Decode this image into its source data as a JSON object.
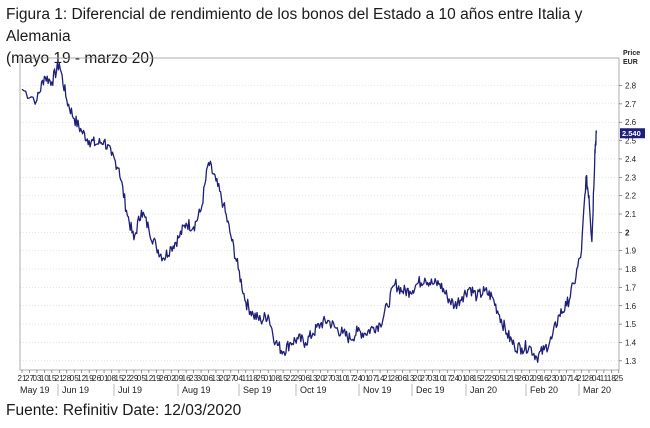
{
  "title_line1": "Figura 1: Diferencial de rendimiento de los bonos del Estado a 10 años entre Italia y Alemania",
  "title_line2": "(mayo 19 - marzo 20)",
  "source": "Fuente: Refinitiv Date: 12/03/2020",
  "colors": {
    "line": "#1f1f7a",
    "grid": "#c8c8c8",
    "last_badge": "#1f1f7a"
  },
  "chart_data": {
    "type": "line",
    "x_labels": [
      "21",
      "27",
      "03",
      "10",
      "15",
      "21",
      "28",
      "05",
      "12",
      "19",
      "26",
      "01",
      "08",
      "15",
      "22",
      "29",
      "05",
      "12",
      "19",
      "26",
      "02",
      "09",
      "16",
      "23",
      "30",
      "06",
      "13",
      "20",
      "27",
      "04",
      "11",
      "18",
      "25",
      "01",
      "08",
      "15",
      "22",
      "29",
      "06",
      "13",
      "20",
      "27",
      "03",
      "10",
      "17",
      "24",
      "01",
      "07",
      "14",
      "21",
      "28",
      "06",
      "13",
      "20",
      "27",
      "03",
      "10",
      "17",
      "24",
      "01",
      "08",
      "15",
      "22",
      "29",
      "05",
      "12",
      "19",
      "26",
      "02",
      "09",
      "16",
      "23",
      "01",
      "07",
      "14",
      "21",
      "28",
      "04",
      "11",
      "18",
      "25"
    ],
    "month_labels": [
      "May 19",
      "Jun 19",
      "Jul 19",
      "Aug 19",
      "Sep 19",
      "Oct 19",
      "Nov 19",
      "Dec 19",
      "Jan 20",
      "Feb 20",
      "Mar 20"
    ],
    "y_unit_lines": [
      "Price",
      "EUR"
    ],
    "ylim": [
      1.25,
      2.95
    ],
    "y_ticks": [
      "1.3",
      "1.4",
      "1.5",
      "1.6",
      "1.7",
      "1.8",
      "1.9",
      "2",
      "2.1",
      "2.2",
      "2.3",
      "2.4",
      "2.5",
      "2.6",
      "2.7",
      "2.8"
    ],
    "last_value_label": "2.540",
    "series": [
      {
        "values": [
          [
            0,
            2.78
          ],
          [
            2,
            2.72
          ],
          [
            3,
            2.85
          ],
          [
            4,
            2.82
          ],
          [
            5,
            2.92
          ],
          [
            6,
            2.72
          ],
          [
            7,
            2.62
          ],
          [
            8,
            2.55
          ],
          [
            9,
            2.5
          ],
          [
            10,
            2.48
          ],
          [
            11,
            2.5
          ],
          [
            12,
            2.42
          ],
          [
            13,
            2.35
          ],
          [
            14,
            2.12
          ],
          [
            15,
            1.96
          ],
          [
            16,
            2.12
          ],
          [
            17,
            2.02
          ],
          [
            18,
            1.92
          ],
          [
            19,
            1.86
          ],
          [
            20,
            1.92
          ],
          [
            21,
            1.97
          ],
          [
            22,
            2.05
          ],
          [
            23,
            2.03
          ],
          [
            24,
            2.12
          ],
          [
            25,
            2.38
          ],
          [
            26,
            2.28
          ],
          [
            27,
            2.15
          ],
          [
            28,
            1.98
          ],
          [
            29,
            1.8
          ],
          [
            30,
            1.62
          ],
          [
            31,
            1.55
          ],
          [
            32,
            1.52
          ],
          [
            33,
            1.55
          ],
          [
            34,
            1.4
          ],
          [
            35,
            1.35
          ],
          [
            36,
            1.4
          ],
          [
            37,
            1.42
          ],
          [
            38,
            1.4
          ],
          [
            39,
            1.45
          ],
          [
            40,
            1.5
          ],
          [
            41,
            1.52
          ],
          [
            42,
            1.48
          ],
          [
            43,
            1.45
          ],
          [
            44,
            1.42
          ],
          [
            45,
            1.46
          ],
          [
            46,
            1.45
          ],
          [
            47,
            1.48
          ],
          [
            48,
            1.5
          ],
          [
            49,
            1.6
          ],
          [
            50,
            1.72
          ],
          [
            51,
            1.68
          ],
          [
            52,
            1.68
          ],
          [
            53,
            1.72
          ],
          [
            54,
            1.75
          ],
          [
            55,
            1.72
          ],
          [
            56,
            1.72
          ],
          [
            57,
            1.65
          ],
          [
            58,
            1.6
          ],
          [
            59,
            1.65
          ],
          [
            60,
            1.7
          ],
          [
            61,
            1.65
          ],
          [
            62,
            1.68
          ],
          [
            63,
            1.65
          ],
          [
            64,
            1.55
          ],
          [
            65,
            1.45
          ],
          [
            66,
            1.38
          ],
          [
            67,
            1.37
          ],
          [
            68,
            1.38
          ],
          [
            69,
            1.32
          ],
          [
            70,
            1.36
          ],
          [
            71,
            1.42
          ],
          [
            72,
            1.55
          ],
          [
            73,
            1.6
          ],
          [
            74,
            1.72
          ],
          [
            75,
            1.9
          ],
          [
            75.6,
            2.3
          ],
          [
            76,
            2.2
          ],
          [
            76.4,
            1.95
          ],
          [
            76.8,
            2.45
          ],
          [
            77,
            2.54
          ]
        ]
      }
    ]
  }
}
